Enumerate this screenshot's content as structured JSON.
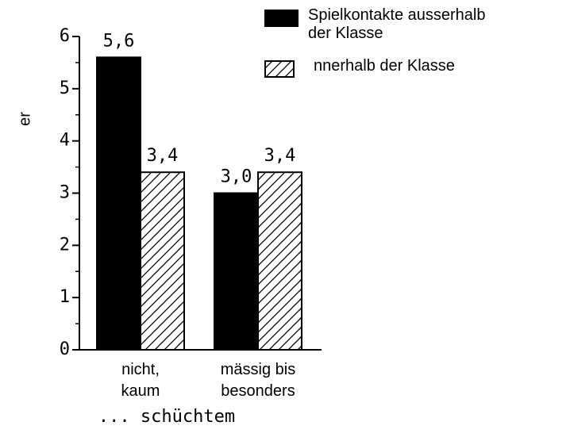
{
  "chart_data": {
    "type": "bar",
    "categories": [
      "nicht,\nkaum",
      "mässig bis\nbesonders"
    ],
    "series": [
      {
        "name": "Spielkontakte ausserhalb\nder Klasse",
        "color": "#000000",
        "values": [
          5.6,
          3.0
        ],
        "value_labels": [
          "5,6",
          "3,0"
        ]
      },
      {
        "name": "nnerhalb der Klasse",
        "color": "hatch",
        "values": [
          3.4,
          3.4
        ],
        "value_labels": [
          "3,4",
          "3,4"
        ]
      }
    ],
    "y_label": "er",
    "x_label": "... schüchtem",
    "ylim": [
      0,
      6
    ],
    "yticks": [
      0,
      1,
      2,
      3,
      4,
      5,
      6
    ],
    "yticks_minor": [
      0.5,
      1.5,
      2.5,
      3.5,
      4.5,
      5.5
    ],
    "legend": "top-right"
  }
}
